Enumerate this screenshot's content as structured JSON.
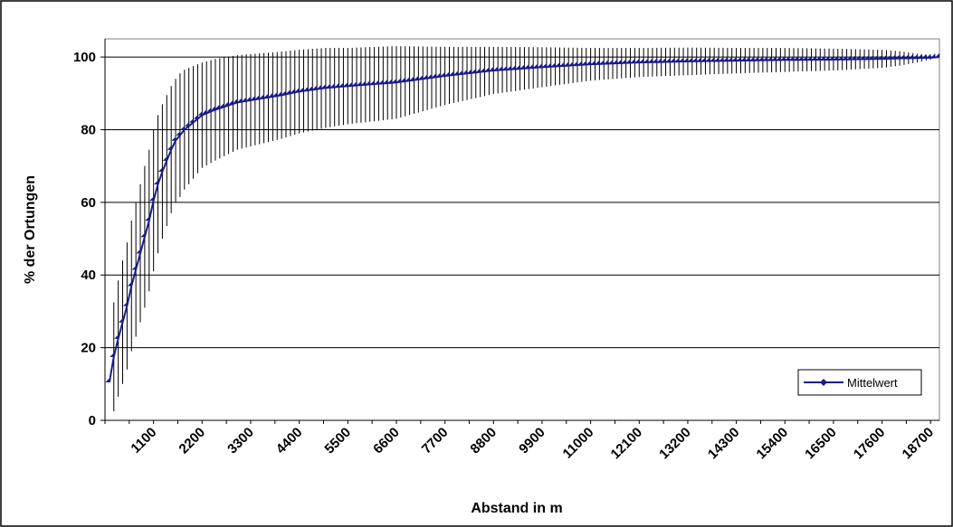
{
  "chart_data": {
    "type": "line",
    "title": "",
    "xlabel": "Abstand in m",
    "ylabel": "% der Ortungen",
    "x_tick_labels": [
      "1100",
      "2200",
      "3300",
      "4400",
      "5500",
      "6600",
      "7700",
      "8800",
      "9900",
      "11000",
      "12100",
      "13200",
      "14300",
      "15400",
      "16500",
      "17600",
      "18700"
    ],
    "y_tick_labels": [
      "0",
      "20",
      "40",
      "60",
      "80",
      "100"
    ],
    "xlim": [
      0,
      18900
    ],
    "ylim": [
      0,
      105
    ],
    "grid": "horizontal",
    "legend_position": "bottom-right",
    "series": [
      {
        "name": "Mittelwert",
        "color": "#1a1a8c",
        "marker": "diamond",
        "x_step": 100,
        "x_start": 100,
        "y_mean_at": {
          "100": 10.5,
          "200": 17.5,
          "300": 22.5,
          "400": 27,
          "500": 31.5,
          "600": 37,
          "700": 41.5,
          "800": 46,
          "900": 50.5,
          "1000": 55,
          "1100": 60.5,
          "1200": 65,
          "1300": 68.5,
          "1400": 71.5,
          "1500": 74.5,
          "1600": 77,
          "1700": 78.5,
          "1800": 80,
          "2000": 82,
          "2200": 84,
          "2500": 85.5,
          "3000": 87.5,
          "3500": 88.5,
          "4000": 89.5,
          "4400": 90.5,
          "5000": 91.5,
          "5500": 92,
          "6600": 93,
          "7700": 94.8,
          "8800": 96.3,
          "9900": 97.2,
          "11000": 98,
          "12100": 98.5,
          "13200": 98.8,
          "14300": 99,
          "15400": 99.2,
          "16500": 99.3,
          "17600": 99.5,
          "18700": 99.8,
          "18900": 100
        },
        "sd_at": {
          "100": 0,
          "200": 15,
          "300": 16,
          "400": 17,
          "500": 17.5,
          "600": 18,
          "700": 18.5,
          "800": 19,
          "900": 19.5,
          "1000": 19.5,
          "1100": 19.5,
          "1200": 19,
          "1300": 18.5,
          "1400": 18,
          "1500": 17.5,
          "1600": 17,
          "1700": 17,
          "1800": 16.5,
          "2000": 15.5,
          "2200": 14.5,
          "2500": 14,
          "3000": 13,
          "3500": 12.5,
          "4000": 12,
          "4400": 11.5,
          "5000": 11,
          "5500": 10.5,
          "6600": 10,
          "7700": 8,
          "8800": 6.5,
          "9900": 5.5,
          "11000": 4.5,
          "12100": 4,
          "13200": 3.8,
          "14300": 3.5,
          "15400": 3.3,
          "16500": 3,
          "17600": 2.5,
          "18000": 2,
          "18400": 1.2,
          "18700": 0.5,
          "18900": 0
        }
      }
    ]
  }
}
